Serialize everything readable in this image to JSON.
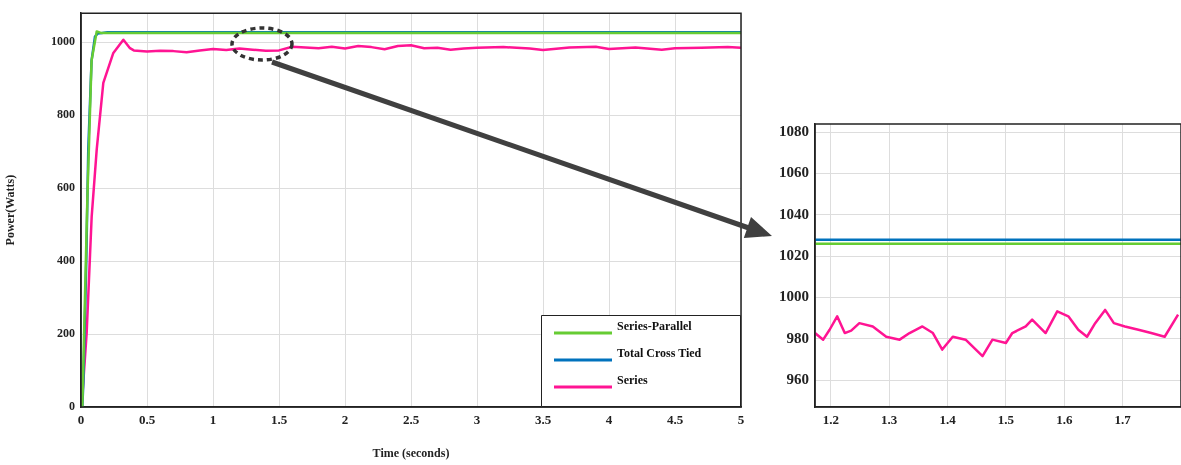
{
  "chart_data": [
    {
      "type": "line",
      "xlabel": "Time (seconds)",
      "ylabel": "Power(Watts)",
      "xlim": [
        0,
        5
      ],
      "ylim": [
        0,
        1080
      ],
      "xticks": [
        0,
        0.5,
        1,
        1.5,
        2,
        2.5,
        3,
        3.5,
        4,
        4.5,
        5
      ],
      "yticks": [
        0,
        200,
        400,
        600,
        800,
        1000
      ],
      "grid": true,
      "legend": "bottom right",
      "marker": "none",
      "line_style": "solid",
      "series": [
        {
          "name": "Series-Parallel",
          "color": "#66cc33",
          "x": [
            0,
            0.01,
            0.03,
            0.048,
            0.08,
            0.119,
            0.15,
            0.2,
            5
          ],
          "values": [
            0,
            0,
            300,
            569,
            950,
            1030,
            1026,
            1026,
            1026
          ]
        },
        {
          "name": "Total Cross Tied",
          "color": "#0072bd",
          "x": [
            0,
            0.01,
            0.018,
            0.04,
            0.055,
            0.08,
            0.106,
            0.126,
            0.2,
            5
          ],
          "values": [
            0,
            0,
            67,
            400,
            706,
            950,
            1016,
            1024,
            1028,
            1028
          ]
        },
        {
          "name": "Series",
          "color": "#ff1493",
          "x": [
            0,
            0.005,
            0.043,
            0.081,
            0.119,
            0.169,
            0.245,
            0.321,
            0.371,
            0.4,
            0.5,
            0.6,
            0.7,
            0.8,
            0.9,
            1.0,
            1.1,
            1.2,
            1.3,
            1.4,
            1.5,
            1.6,
            1.7,
            1.8,
            1.9,
            2.0,
            2.1,
            2.2,
            2.3,
            2.4,
            2.5,
            2.6,
            2.7,
            2.8,
            2.9,
            3.0,
            3.2,
            3.4,
            3.5,
            3.7,
            3.9,
            4.0,
            4.2,
            4.4,
            4.5,
            4.7,
            4.9,
            5.0
          ],
          "values": [
            0,
            3,
            204,
            523,
            706,
            889,
            971,
            1007,
            984,
            978,
            975,
            977,
            976,
            973,
            978,
            982,
            979,
            983,
            980,
            977,
            978,
            988,
            986,
            984,
            988,
            983,
            990,
            987,
            981,
            990,
            992,
            984,
            985,
            980,
            983,
            985,
            987,
            983,
            979,
            986,
            988,
            982,
            986,
            980,
            984,
            985,
            987,
            985
          ]
        }
      ]
    },
    {
      "type": "line",
      "xlim": [
        1.173,
        1.8
      ],
      "ylim": [
        947,
        1084
      ],
      "xticks": [
        1.2,
        1.3,
        1.4,
        1.5,
        1.6,
        1.7
      ],
      "yticks": [
        960,
        980,
        1000,
        1020,
        1040,
        1060,
        1080
      ],
      "grid": true,
      "marker": "none",
      "line_style": "solid",
      "series": [
        {
          "color": "#66cc33",
          "x": [
            1.173,
            1.8
          ],
          "values": [
            1026,
            1026
          ]
        },
        {
          "color": "#0072bd",
          "x": [
            1.173,
            1.8
          ],
          "values": [
            1028,
            1028
          ]
        },
        {
          "color": "#ff1493",
          "x": [
            1.173,
            1.187,
            1.198,
            1.211,
            1.224,
            1.235,
            1.249,
            1.272,
            1.295,
            1.318,
            1.335,
            1.357,
            1.375,
            1.391,
            1.409,
            1.431,
            1.46,
            1.477,
            1.5,
            1.511,
            1.534,
            1.545,
            1.568,
            1.588,
            1.607,
            1.624,
            1.639,
            1.653,
            1.67,
            1.685,
            1.704,
            1.727,
            1.749,
            1.772,
            1.795
          ],
          "values": [
            982.8,
            979.6,
            984.4,
            990.9,
            982.8,
            984,
            987.6,
            986,
            981,
            979.6,
            982.8,
            986,
            982.8,
            974.8,
            981,
            979.6,
            971.6,
            979.6,
            978,
            982.8,
            986,
            989.3,
            982.8,
            993.3,
            990.9,
            984.4,
            981,
            987.6,
            994,
            987.6,
            986,
            984.4,
            982.8,
            981,
            991.7
          ]
        }
      ]
    }
  ]
}
